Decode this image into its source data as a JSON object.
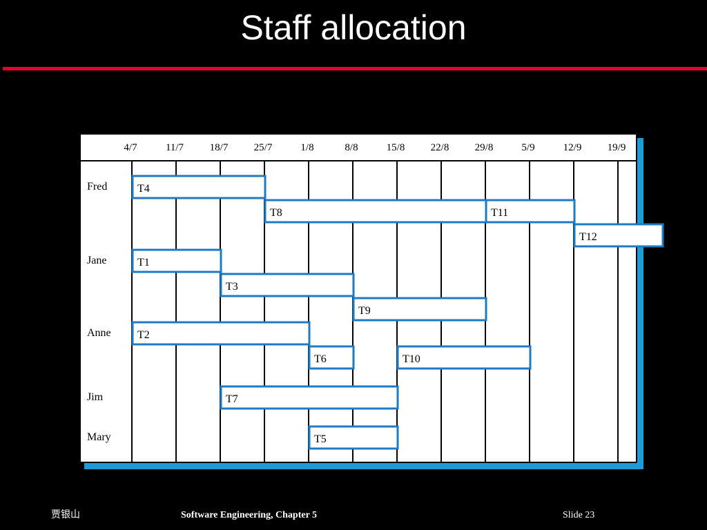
{
  "slide": {
    "title": "Staff allocation",
    "footer_left": "贾银山",
    "footer_center": "Software Engineering,    Chapter 5",
    "footer_right": "Slide  23"
  },
  "colors": {
    "background": "#000000",
    "title_rule": "#e8002a",
    "bar_stroke": "#1e7ac4",
    "shadow": "#1e9ad6"
  },
  "chart_data": {
    "type": "gantt",
    "dates": [
      "4/7",
      "11/7",
      "18/7",
      "25/7",
      "1/8",
      "8/8",
      "15/8",
      "22/8",
      "29/8",
      "5/9",
      "12/9",
      "19/9"
    ],
    "people": [
      "Fred",
      "Jane",
      "Anne",
      "Jim",
      "Mary"
    ],
    "tasks": [
      {
        "label": "T4",
        "person": "Fred",
        "start": "4/7",
        "end": "25/7"
      },
      {
        "label": "T8",
        "person": "Fred",
        "start": "25/7",
        "end": "29/8"
      },
      {
        "label": "T11",
        "person": "Fred",
        "start": "29/8",
        "end": "12/9"
      },
      {
        "label": "T12",
        "person": "Fred",
        "start": "12/9",
        "end": "26/9"
      },
      {
        "label": "T1",
        "person": "Jane",
        "start": "4/7",
        "end": "18/7"
      },
      {
        "label": "T3",
        "person": "Jane",
        "start": "18/7",
        "end": "8/8"
      },
      {
        "label": "T9",
        "person": "Jane",
        "start": "8/8",
        "end": "29/8"
      },
      {
        "label": "T2",
        "person": "Anne",
        "start": "4/7",
        "end": "1/8"
      },
      {
        "label": "T6",
        "person": "Anne",
        "start": "1/8",
        "end": "8/8"
      },
      {
        "label": "T10",
        "person": "Anne",
        "start": "15/8",
        "end": "5/9"
      },
      {
        "label": "T7",
        "person": "Jim",
        "start": "18/7",
        "end": "15/8"
      },
      {
        "label": "T5",
        "person": "Mary",
        "start": "1/8",
        "end": "15/8"
      }
    ]
  }
}
